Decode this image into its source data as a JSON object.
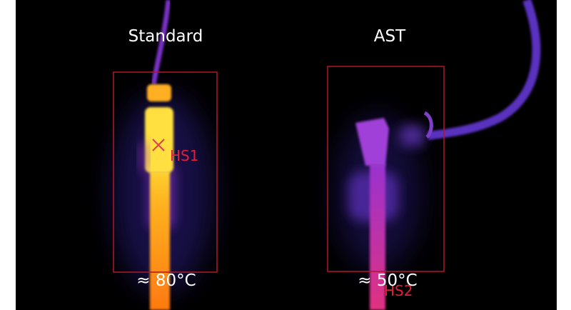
{
  "panels": [
    {
      "title": "Standard",
      "temperature": "≈ 80°C",
      "hotspot": "HS1"
    },
    {
      "title": "AST",
      "temperature": "≈ 50°C",
      "hotspot": "HS2"
    }
  ]
}
